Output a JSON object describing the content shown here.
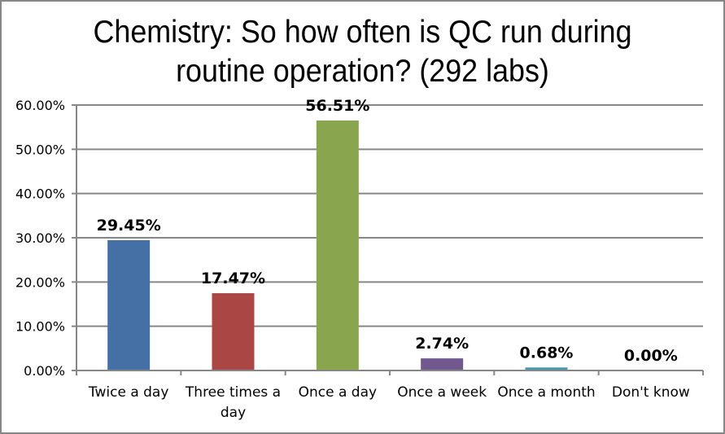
{
  "chart_data": {
    "type": "bar",
    "title": "Chemistry: So how often is QC run during routine operation? (292 labs)",
    "title_lines": [
      "Chemistry: So how often is QC run during",
      "routine operation? (292 labs)"
    ],
    "xlabel": "",
    "ylabel": "",
    "categories": [
      "Twice a day",
      "Three times a day",
      "Once a day",
      "Once a week",
      "Once a month",
      "Don't know"
    ],
    "category_lines": [
      [
        "Twice a day"
      ],
      [
        "Three times a",
        "day"
      ],
      [
        "Once a day"
      ],
      [
        "Once a week"
      ],
      [
        "Once a month"
      ],
      [
        "Don't know"
      ]
    ],
    "values": [
      29.45,
      17.47,
      56.51,
      2.74,
      0.68,
      0.0
    ],
    "data_labels": [
      "29.45%",
      "17.47%",
      "56.51%",
      "2.74%",
      "0.68%",
      "0.00%"
    ],
    "colors": [
      "#4470A5",
      "#AA4744",
      "#89A54E",
      "#71588F",
      "#4198AF",
      "#DB843D"
    ],
    "ylim": [
      0,
      60
    ],
    "yticks": [
      0,
      10,
      20,
      30,
      40,
      50,
      60
    ],
    "ytick_labels": [
      "0.00%",
      "10.00%",
      "20.00%",
      "30.00%",
      "40.00%",
      "50.00%",
      "60.00%"
    ],
    "grid": true,
    "legend": "none"
  }
}
